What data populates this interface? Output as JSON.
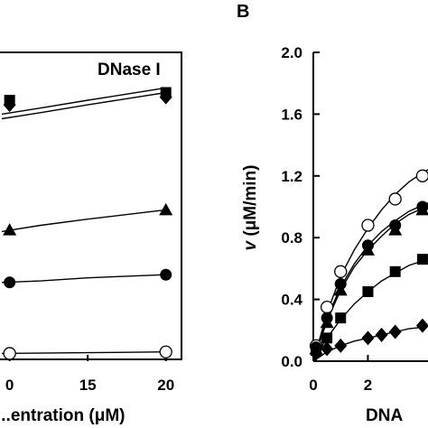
{
  "chart_data": [
    {
      "type": "scatter",
      "panel": "",
      "annotation": "DNase I",
      "xlabel": "...entration (μM)",
      "ylabel": "",
      "xlim": [
        9.5,
        21
      ],
      "ylim": [
        0,
        2.0
      ],
      "x_tick_labels": [
        "0",
        "15",
        "20"
      ],
      "series": [
        {
          "marker": "filled-square",
          "x": [
            10,
            20
          ],
          "y": [
            1.69,
            1.74
          ],
          "fit": [
            [
              9.5,
              1.6
            ],
            [
              12,
              1.64
            ],
            [
              15,
              1.69
            ],
            [
              17.5,
              1.73
            ],
            [
              20,
              1.77
            ]
          ]
        },
        {
          "marker": "filled-diamond",
          "x": [
            10,
            20
          ],
          "y": [
            1.66,
            1.71
          ],
          "fit": [
            [
              9.5,
              1.57
            ],
            [
              12,
              1.61
            ],
            [
              15,
              1.66
            ],
            [
              17.5,
              1.7
            ],
            [
              20,
              1.74
            ]
          ]
        },
        {
          "marker": "filled-triangle",
          "x": [
            10,
            20
          ],
          "y": [
            0.85,
            0.98
          ],
          "fit": [
            [
              9.5,
              0.84
            ],
            [
              12,
              0.88
            ],
            [
              15,
              0.92
            ],
            [
              17.5,
              0.95
            ],
            [
              20,
              0.98
            ]
          ]
        },
        {
          "marker": "filled-circle",
          "x": [
            10,
            20
          ],
          "y": [
            0.51,
            0.56
          ],
          "fit": [
            [
              9.5,
              0.51
            ],
            [
              12,
              0.52
            ],
            [
              15,
              0.54
            ],
            [
              17.5,
              0.55
            ],
            [
              20,
              0.56
            ]
          ]
        },
        {
          "marker": "open-circle",
          "x": [
            10,
            20
          ],
          "y": [
            0.05,
            0.06
          ],
          "fit": [
            [
              9.5,
              0.05
            ],
            [
              15,
              0.055
            ],
            [
              20,
              0.06
            ]
          ]
        }
      ]
    },
    {
      "type": "scatter",
      "panel": "B",
      "annotation": "",
      "xlabel": "DNA",
      "ylabel": "v (μM/min)",
      "ylabel_italic_part": "v",
      "ylabel_rest": " (μM/min)",
      "xlim": [
        0,
        4.4
      ],
      "ylim": [
        0,
        2.0
      ],
      "y_tick_labels": [
        "0.0",
        "0.4",
        "0.8",
        "1.2",
        "1.6",
        "2.0"
      ],
      "x_tick_labels": [
        "0",
        "2"
      ],
      "series": [
        {
          "marker": "open-circle",
          "x": [
            0.1,
            0.5,
            1.0,
            2.0,
            3.0,
            4.0
          ],
          "y": [
            0.1,
            0.35,
            0.58,
            0.88,
            1.05,
            1.2
          ],
          "fit": [
            [
              0,
              0.0
            ],
            [
              0.5,
              0.31
            ],
            [
              1.0,
              0.55
            ],
            [
              1.5,
              0.72
            ],
            [
              2.0,
              0.86
            ],
            [
              2.5,
              0.98
            ],
            [
              3.0,
              1.08
            ],
            [
              3.5,
              1.16
            ],
            [
              4.0,
              1.22
            ],
            [
              4.4,
              1.26
            ]
          ]
        },
        {
          "marker": "filled-circle",
          "x": [
            0.1,
            0.5,
            1.0,
            2.0,
            3.0,
            4.0
          ],
          "y": [
            0.09,
            0.28,
            0.5,
            0.75,
            0.88,
            1.0
          ],
          "fit": [
            [
              0,
              0.0
            ],
            [
              0.5,
              0.28
            ],
            [
              1.0,
              0.48
            ],
            [
              1.5,
              0.63
            ],
            [
              2.0,
              0.75
            ],
            [
              2.5,
              0.84
            ],
            [
              3.0,
              0.91
            ],
            [
              3.5,
              0.97
            ],
            [
              4.0,
              1.01
            ],
            [
              4.4,
              1.04
            ]
          ]
        },
        {
          "marker": "filled-triangle",
          "x": [
            0.1,
            0.5,
            1.0,
            2.0,
            3.0,
            4.0
          ],
          "y": [
            0.08,
            0.25,
            0.46,
            0.72,
            0.85,
            0.98
          ],
          "fit": [
            [
              0,
              0.0
            ],
            [
              0.5,
              0.26
            ],
            [
              1.0,
              0.46
            ],
            [
              1.5,
              0.61
            ],
            [
              2.0,
              0.72
            ],
            [
              2.5,
              0.81
            ],
            [
              3.0,
              0.89
            ],
            [
              3.5,
              0.95
            ],
            [
              4.0,
              0.99
            ],
            [
              4.4,
              1.02
            ]
          ]
        },
        {
          "marker": "filled-square",
          "x": [
            0.1,
            0.5,
            1.0,
            2.0,
            3.0,
            4.0
          ],
          "y": [
            0.07,
            0.15,
            0.28,
            0.45,
            0.58,
            0.66
          ],
          "fit": [
            [
              0,
              0.0
            ],
            [
              0.5,
              0.15
            ],
            [
              1.0,
              0.27
            ],
            [
              1.5,
              0.37
            ],
            [
              2.0,
              0.45
            ],
            [
              2.5,
              0.52
            ],
            [
              3.0,
              0.57
            ],
            [
              3.5,
              0.62
            ],
            [
              4.0,
              0.65
            ],
            [
              4.4,
              0.68
            ]
          ]
        },
        {
          "marker": "filled-diamond",
          "x": [
            0.1,
            0.5,
            1.0,
            2.0,
            2.5,
            3.0,
            4.0
          ],
          "y": [
            0.05,
            0.08,
            0.1,
            0.15,
            0.17,
            0.19,
            0.23
          ],
          "fit": [
            [
              0,
              0.0
            ],
            [
              0.5,
              0.06
            ],
            [
              1.0,
              0.1
            ],
            [
              1.5,
              0.13
            ],
            [
              2.0,
              0.15
            ],
            [
              2.5,
              0.17
            ],
            [
              3.0,
              0.19
            ],
            [
              3.5,
              0.21
            ],
            [
              4.0,
              0.22
            ],
            [
              4.4,
              0.23
            ]
          ]
        }
      ]
    }
  ]
}
